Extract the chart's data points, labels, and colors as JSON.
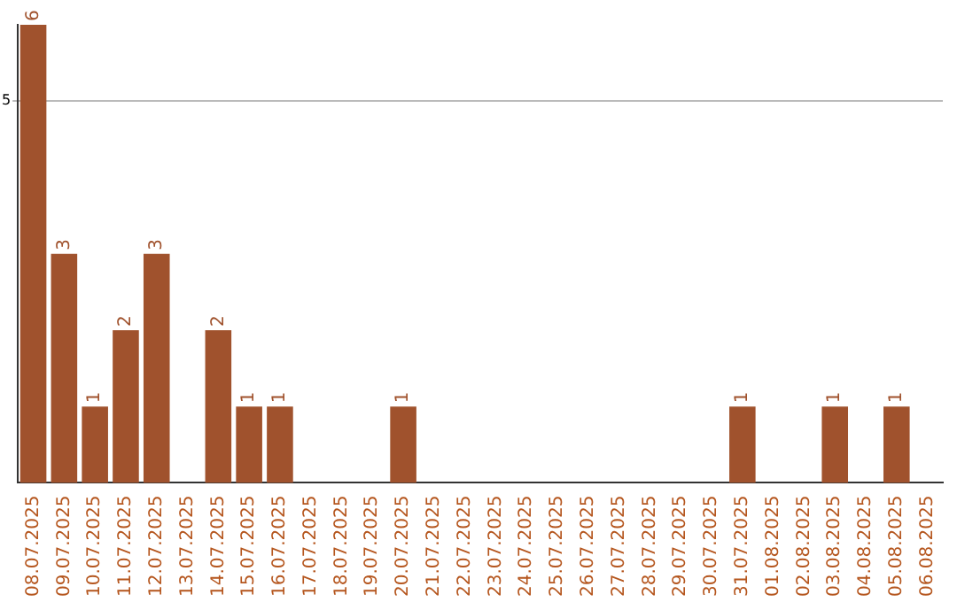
{
  "chart_data": {
    "type": "bar",
    "categories": [
      "08.07.2025",
      "09.07.2025",
      "10.07.2025",
      "11.07.2025",
      "12.07.2025",
      "13.07.2025",
      "14.07.2025",
      "15.07.2025",
      "16.07.2025",
      "17.07.2025",
      "18.07.2025",
      "19.07.2025",
      "20.07.2025",
      "21.07.2025",
      "22.07.2025",
      "23.07.2025",
      "24.07.2025",
      "25.07.2025",
      "26.07.2025",
      "27.07.2025",
      "28.07.2025",
      "29.07.2025",
      "30.07.2025",
      "31.07.2025",
      "01.08.2025",
      "02.08.2025",
      "03.08.2025",
      "04.08.2025",
      "05.08.2025",
      "06.08.2025"
    ],
    "values": [
      6,
      3,
      1,
      2,
      3,
      0,
      2,
      1,
      1,
      0,
      0,
      0,
      1,
      0,
      0,
      0,
      0,
      0,
      0,
      0,
      0,
      0,
      0,
      1,
      0,
      0,
      1,
      0,
      1,
      0
    ],
    "value_labels": [
      "6",
      "3",
      "1",
      "2",
      "3",
      null,
      "2",
      "1",
      "1",
      null,
      null,
      null,
      "1",
      null,
      null,
      null,
      null,
      null,
      null,
      null,
      null,
      null,
      null,
      "1",
      null,
      null,
      "1",
      null,
      "1",
      null
    ],
    "color": "#a0522d",
    "ylim": [
      0,
      6
    ],
    "yticks": [
      5
    ],
    "grid": "y",
    "legend": false
  }
}
